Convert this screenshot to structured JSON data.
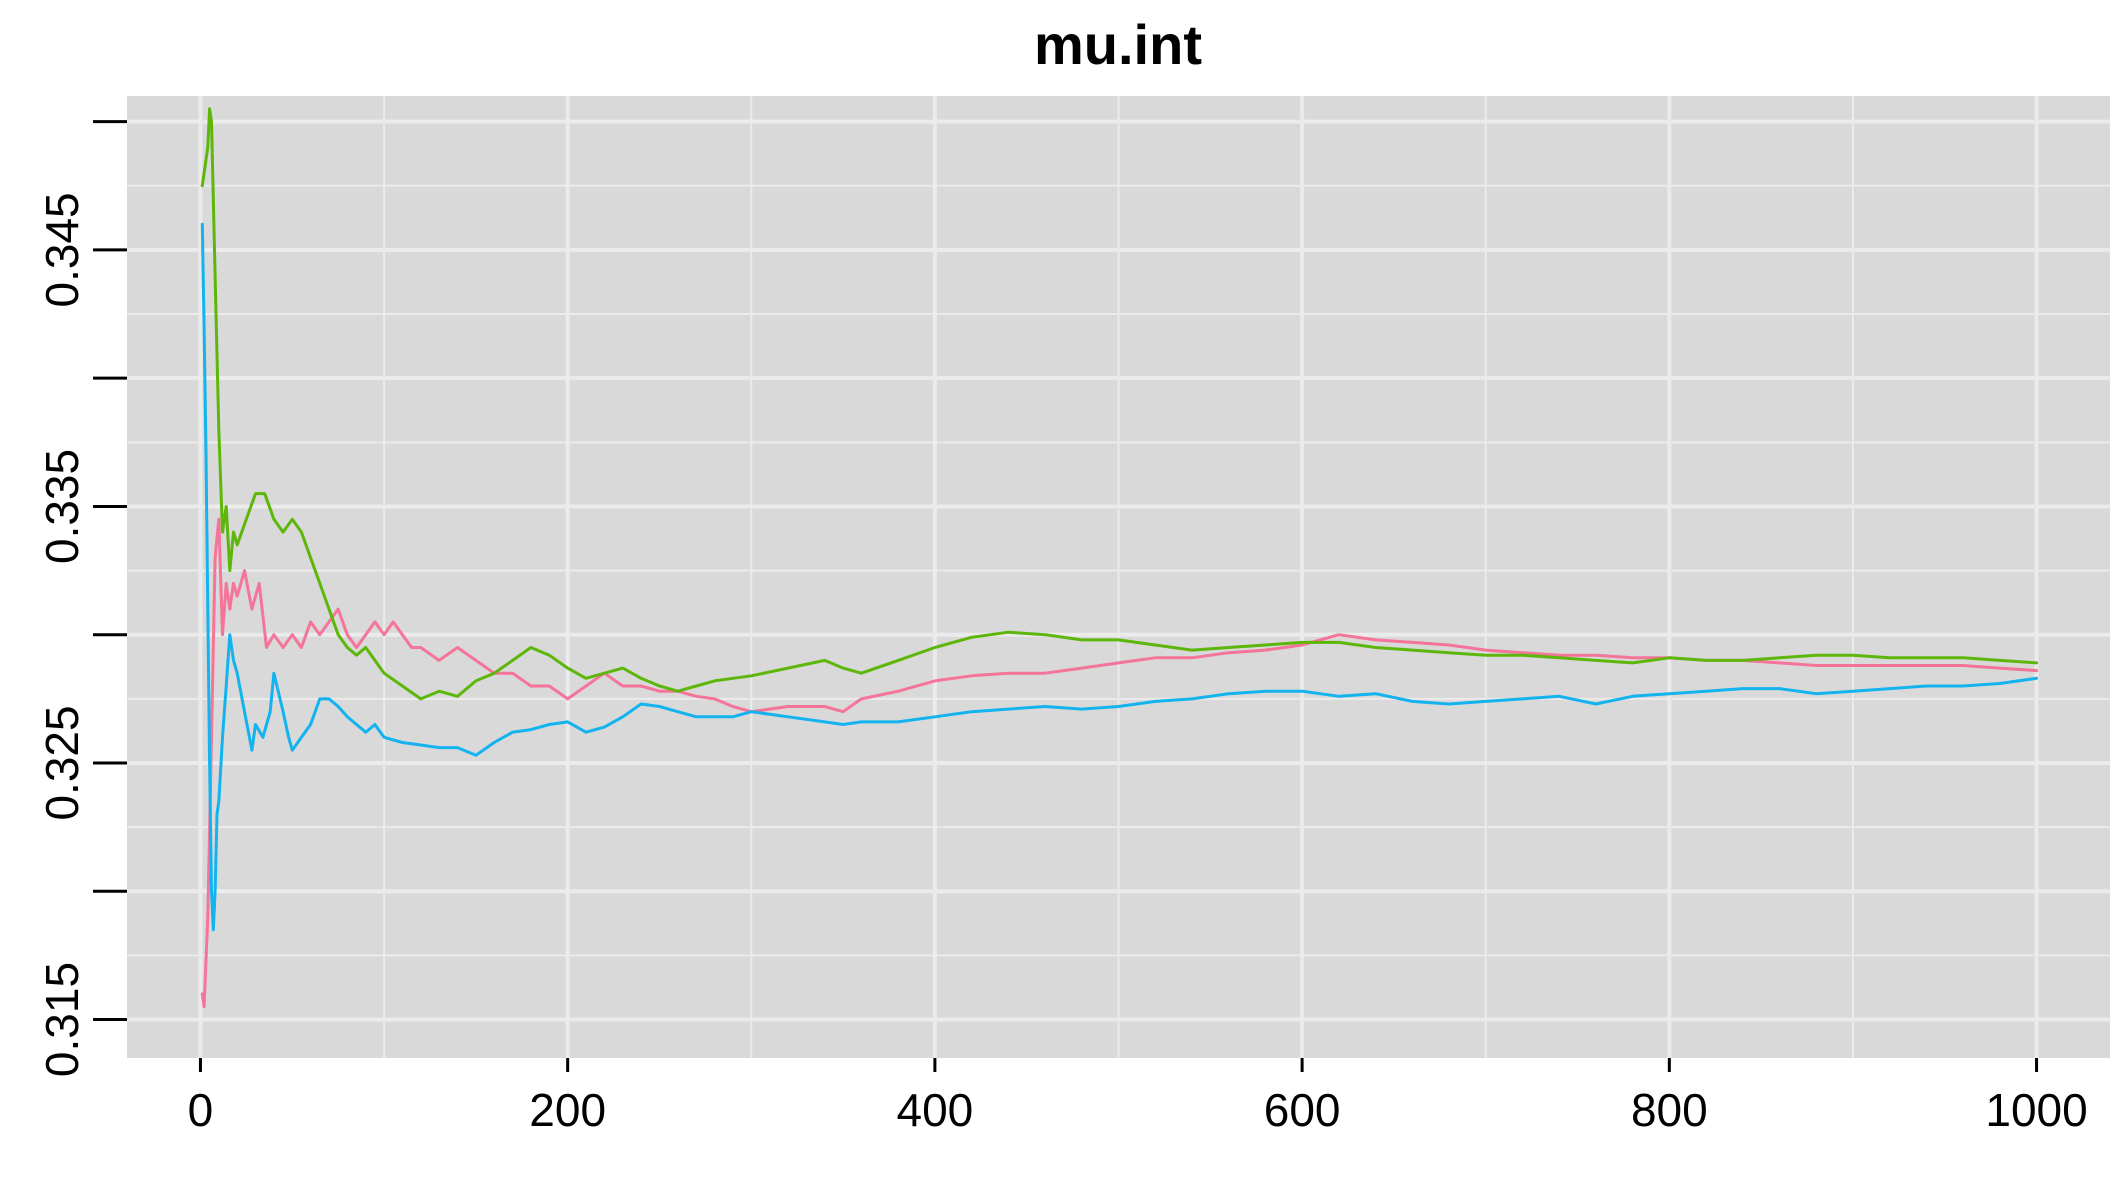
{
  "chart_data": {
    "type": "line",
    "title": "mu.int",
    "xlabel": "",
    "ylabel": "",
    "xlim": [
      -40,
      1040
    ],
    "ylim": [
      0.3135,
      0.351
    ],
    "x_ticks": [
      0,
      200,
      400,
      600,
      800,
      1000
    ],
    "x_tick_labels": [
      "0",
      "200",
      "400",
      "600",
      "800",
      "1000"
    ],
    "y_ticks": [
      0.315,
      0.32,
      0.325,
      0.33,
      0.335,
      0.34,
      0.345,
      0.35
    ],
    "y_tick_labels": [
      "0.315",
      "",
      "0.325",
      "",
      "0.335",
      "",
      "0.345",
      ""
    ],
    "grid": true,
    "legend": "none",
    "background_color": "#d9d9d9",
    "grid_color": "#ebebeb",
    "series": [
      {
        "color": "#f4749a",
        "x": [
          1,
          2,
          4,
          6,
          8,
          10,
          12,
          14,
          16,
          18,
          20,
          24,
          28,
          32,
          36,
          40,
          45,
          50,
          55,
          60,
          65,
          70,
          75,
          80,
          85,
          90,
          95,
          100,
          105,
          110,
          115,
          120,
          130,
          140,
          150,
          160,
          170,
          180,
          190,
          200,
          210,
          220,
          230,
          240,
          250,
          260,
          270,
          280,
          290,
          300,
          320,
          340,
          350,
          360,
          380,
          400,
          420,
          440,
          460,
          480,
          500,
          520,
          540,
          560,
          580,
          600,
          620,
          640,
          660,
          680,
          700,
          720,
          740,
          760,
          780,
          800,
          820,
          840,
          860,
          880,
          900,
          920,
          940,
          960,
          980,
          1000
        ],
        "y": [
          0.316,
          0.3155,
          0.319,
          0.326,
          0.333,
          0.3345,
          0.33,
          0.332,
          0.331,
          0.332,
          0.3315,
          0.3325,
          0.331,
          0.332,
          0.3295,
          0.33,
          0.3295,
          0.33,
          0.3295,
          0.3305,
          0.33,
          0.3305,
          0.331,
          0.33,
          0.3295,
          0.33,
          0.3305,
          0.33,
          0.3305,
          0.33,
          0.3295,
          0.3295,
          0.329,
          0.3295,
          0.329,
          0.3285,
          0.3285,
          0.328,
          0.328,
          0.3275,
          0.328,
          0.3285,
          0.328,
          0.328,
          0.3278,
          0.3278,
          0.3276,
          0.3275,
          0.3272,
          0.327,
          0.3272,
          0.3272,
          0.327,
          0.3275,
          0.3278,
          0.3282,
          0.3284,
          0.3285,
          0.3285,
          0.3287,
          0.3289,
          0.3291,
          0.3291,
          0.3293,
          0.3294,
          0.3296,
          0.33,
          0.3298,
          0.3297,
          0.3296,
          0.3294,
          0.3293,
          0.3292,
          0.3292,
          0.3291,
          0.3291,
          0.329,
          0.329,
          0.3289,
          0.3288,
          0.3288,
          0.3288,
          0.3288,
          0.3288,
          0.3287,
          0.3286
        ]
      },
      {
        "color": "#5db70a",
        "x": [
          1,
          2,
          4,
          5,
          6,
          8,
          10,
          12,
          14,
          16,
          18,
          20,
          25,
          30,
          35,
          40,
          45,
          50,
          55,
          60,
          65,
          70,
          75,
          80,
          85,
          90,
          95,
          100,
          110,
          120,
          130,
          140,
          150,
          160,
          170,
          180,
          190,
          200,
          210,
          220,
          230,
          240,
          250,
          260,
          270,
          280,
          290,
          300,
          320,
          340,
          350,
          360,
          380,
          400,
          420,
          440,
          460,
          480,
          500,
          520,
          540,
          560,
          580,
          600,
          620,
          640,
          660,
          680,
          700,
          720,
          740,
          760,
          780,
          800,
          820,
          840,
          860,
          880,
          900,
          920,
          940,
          960,
          980,
          1000
        ],
        "y": [
          0.3475,
          0.348,
          0.349,
          0.3505,
          0.35,
          0.344,
          0.338,
          0.334,
          0.335,
          0.3325,
          0.334,
          0.3335,
          0.3345,
          0.3355,
          0.3355,
          0.3345,
          0.334,
          0.3345,
          0.334,
          0.333,
          0.332,
          0.331,
          0.33,
          0.3295,
          0.3292,
          0.3295,
          0.329,
          0.3285,
          0.328,
          0.3275,
          0.3278,
          0.3276,
          0.3282,
          0.3285,
          0.329,
          0.3295,
          0.3292,
          0.3287,
          0.3283,
          0.3285,
          0.3287,
          0.3283,
          0.328,
          0.3278,
          0.328,
          0.3282,
          0.3283,
          0.3284,
          0.3287,
          0.329,
          0.3287,
          0.3285,
          0.329,
          0.3295,
          0.3299,
          0.3301,
          0.33,
          0.3298,
          0.3298,
          0.3296,
          0.3294,
          0.3295,
          0.3296,
          0.3297,
          0.3297,
          0.3295,
          0.3294,
          0.3293,
          0.3292,
          0.3292,
          0.3291,
          0.329,
          0.3289,
          0.3291,
          0.329,
          0.329,
          0.3291,
          0.3292,
          0.3292,
          0.3291,
          0.3291,
          0.3291,
          0.329,
          0.3289
        ]
      },
      {
        "color": "#12b3ee",
        "x": [
          1,
          2,
          3,
          4,
          5,
          6,
          7,
          8,
          9,
          10,
          12,
          14,
          16,
          18,
          20,
          24,
          28,
          30,
          34,
          38,
          40,
          45,
          48,
          50,
          55,
          60,
          65,
          70,
          75,
          80,
          85,
          90,
          95,
          100,
          110,
          120,
          130,
          140,
          150,
          160,
          170,
          180,
          190,
          200,
          210,
          220,
          230,
          240,
          250,
          260,
          270,
          280,
          290,
          300,
          320,
          340,
          350,
          360,
          380,
          400,
          420,
          440,
          460,
          480,
          500,
          520,
          540,
          560,
          580,
          600,
          620,
          640,
          660,
          680,
          700,
          720,
          740,
          760,
          780,
          800,
          820,
          840,
          860,
          880,
          900,
          920,
          940,
          960,
          980,
          1000
        ],
        "y": [
          0.346,
          0.342,
          0.337,
          0.331,
          0.325,
          0.32,
          0.3185,
          0.32,
          0.323,
          0.3235,
          0.326,
          0.328,
          0.33,
          0.329,
          0.3285,
          0.327,
          0.3255,
          0.3265,
          0.326,
          0.327,
          0.3285,
          0.327,
          0.326,
          0.3255,
          0.326,
          0.3265,
          0.3275,
          0.3275,
          0.3272,
          0.3268,
          0.3265,
          0.3262,
          0.3265,
          0.326,
          0.3258,
          0.3257,
          0.3256,
          0.3256,
          0.3253,
          0.3258,
          0.3262,
          0.3263,
          0.3265,
          0.3266,
          0.3262,
          0.3264,
          0.3268,
          0.3273,
          0.3272,
          0.327,
          0.3268,
          0.3268,
          0.3268,
          0.327,
          0.3268,
          0.3266,
          0.3265,
          0.3266,
          0.3266,
          0.3268,
          0.327,
          0.3271,
          0.3272,
          0.3271,
          0.3272,
          0.3274,
          0.3275,
          0.3277,
          0.3278,
          0.3278,
          0.3276,
          0.3277,
          0.3274,
          0.3273,
          0.3274,
          0.3275,
          0.3276,
          0.3273,
          0.3276,
          0.3277,
          0.3278,
          0.3279,
          0.3279,
          0.3277,
          0.3278,
          0.3279,
          0.328,
          0.328,
          0.3281,
          0.3283
        ]
      }
    ]
  }
}
